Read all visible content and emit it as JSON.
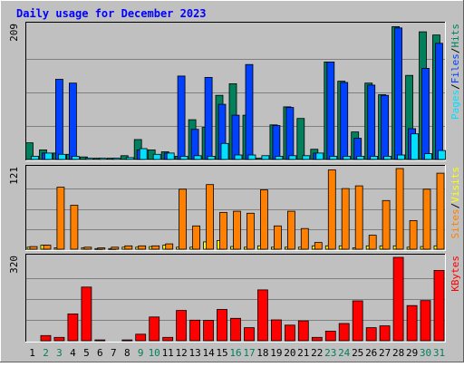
{
  "title": "Daily usage for December 2023",
  "colors": {
    "background": "#c0c0c0",
    "plot": "#c0c0c0",
    "title": "#0000ff",
    "hits": "#00805c",
    "files": "#0040ff",
    "pages": "#00e0ff",
    "visits": "#ffff00",
    "sites": "#ff8000",
    "kbytes": "#ff0000",
    "weekday": "#000000",
    "weekend": "#00805c"
  },
  "chart_data": [
    {
      "type": "bar",
      "panel": "hits-files-pages",
      "ylabel": [
        "Pages",
        "/",
        "Files",
        "/",
        "Hits"
      ],
      "ymax_label": "209",
      "ylim": [
        0,
        209
      ],
      "categories": [
        "1",
        "2",
        "3",
        "4",
        "5",
        "6",
        "7",
        "8",
        "9",
        "10",
        "11",
        "12",
        "13",
        "14",
        "15",
        "16",
        "17",
        "18",
        "19",
        "20",
        "21",
        "22",
        "23",
        "24",
        "25",
        "26",
        "27",
        "28",
        "29",
        "30",
        "31"
      ],
      "series": [
        {
          "name": "Hits",
          "color": "#00805c",
          "values": [
            26,
            15,
            10,
            8,
            4,
            2,
            2,
            6,
            31,
            15,
            12,
            5,
            62,
            50,
            100,
            118,
            69,
            2,
            54,
            82,
            64,
            16,
            152,
            122,
            43,
            119,
            101,
            207,
            131,
            199,
            194
          ]
        },
        {
          "name": "Files",
          "color": "#0040ff",
          "values": [
            0,
            10,
            125,
            119,
            0,
            0,
            0,
            0,
            15,
            0,
            10,
            130,
            47,
            128,
            86,
            69,
            148,
            0,
            53,
            81,
            0,
            10,
            152,
            120,
            33,
            116,
            100,
            205,
            48,
            142,
            181
          ]
        },
        {
          "name": "Pages",
          "color": "#00e0ff",
          "values": [
            5,
            10,
            8,
            5,
            2,
            2,
            2,
            3,
            17,
            8,
            10,
            5,
            6,
            5,
            25,
            7,
            7,
            6,
            5,
            6,
            6,
            10,
            5,
            5,
            5,
            5,
            5,
            7,
            40,
            9,
            14
          ]
        }
      ]
    },
    {
      "type": "bar",
      "panel": "sites-visits",
      "ylabel": [
        "Sites",
        "/",
        "Visits"
      ],
      "ymax_label": "121",
      "ylim": [
        0,
        121
      ],
      "categories": [
        "1",
        "2",
        "3",
        "4",
        "5",
        "6",
        "7",
        "8",
        "9",
        "10",
        "11",
        "12",
        "13",
        "14",
        "15",
        "16",
        "17",
        "18",
        "19",
        "20",
        "21",
        "22",
        "23",
        "24",
        "25",
        "26",
        "27",
        "28",
        "29",
        "30",
        "31"
      ],
      "series": [
        {
          "name": "Visits",
          "color": "#ffff00",
          "values": [
            3,
            6,
            2,
            0,
            2,
            1,
            1,
            3,
            3,
            4,
            6,
            3,
            3,
            11,
            13,
            4,
            3,
            5,
            3,
            3,
            3,
            5,
            5,
            5,
            2,
            5,
            5,
            5,
            3,
            4,
            5
          ]
        },
        {
          "name": "Sites",
          "color": "#ff8000",
          "values": [
            4,
            6,
            93,
            66,
            3,
            2,
            3,
            5,
            5,
            5,
            8,
            90,
            35,
            97,
            55,
            57,
            54,
            89,
            35,
            57,
            31,
            10,
            119,
            91,
            95,
            21,
            73,
            121,
            43,
            90,
            114
          ]
        }
      ]
    },
    {
      "type": "bar",
      "panel": "kbytes",
      "ylabel": [
        "KBytes"
      ],
      "ymax_label": "320",
      "ylim": [
        0,
        320
      ],
      "categories": [
        "1",
        "2",
        "3",
        "4",
        "5",
        "6",
        "7",
        "8",
        "9",
        "10",
        "11",
        "12",
        "13",
        "14",
        "15",
        "16",
        "17",
        "18",
        "19",
        "20",
        "21",
        "22",
        "23",
        "24",
        "25",
        "26",
        "27",
        "28",
        "29",
        "30",
        "31"
      ],
      "series": [
        {
          "name": "KBytes",
          "color": "#ff0000",
          "values": [
            0,
            20,
            13,
            103,
            206,
            3,
            0,
            3,
            25,
            91,
            13,
            116,
            79,
            78,
            120,
            86,
            50,
            195,
            80,
            60,
            76,
            13,
            37,
            66,
            153,
            50,
            57,
            320,
            135,
            154,
            270
          ]
        }
      ]
    }
  ],
  "x_axis": {
    "labels": [
      "1",
      "2",
      "3",
      "4",
      "5",
      "6",
      "7",
      "8",
      "9",
      "10",
      "11",
      "12",
      "13",
      "14",
      "15",
      "16",
      "17",
      "18",
      "19",
      "20",
      "21",
      "22",
      "23",
      "24",
      "25",
      "26",
      "27",
      "28",
      "29",
      "30",
      "31"
    ],
    "weekend": [
      "2",
      "3",
      "9",
      "10",
      "16",
      "17",
      "23",
      "24",
      "30",
      "31"
    ]
  }
}
